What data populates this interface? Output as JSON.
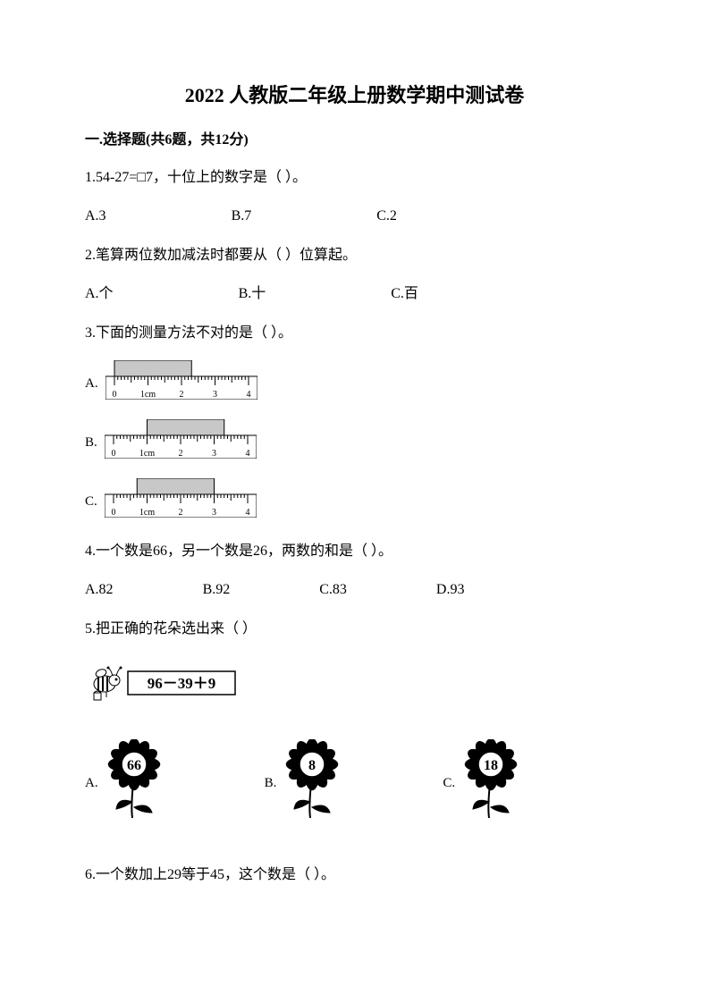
{
  "title": "2022 人教版二年级上册数学期中测试卷",
  "section1": {
    "header": "一.选择题(共6题，共12分)",
    "q1": {
      "text": "1.54-27=□7，十位上的数字是（    ）。",
      "options": {
        "a": "A.3",
        "b": "B.7",
        "c": "C.2"
      }
    },
    "q2": {
      "text": "2.笔算两位数加减法时都要从（      ）位算起。",
      "options": {
        "a": "A.个",
        "b": "B.十",
        "c": "C.百"
      }
    },
    "q3": {
      "text": "3.下面的测量方法不对的是（     ）。",
      "rulers": {
        "a_label": "A.",
        "b_label": "B.",
        "c_label": "C.",
        "ticks": [
          "0",
          "1cm",
          "2",
          "3",
          "4"
        ],
        "a_rect_start": 0,
        "a_rect_end": 2.3,
        "b_rect_start": 1,
        "b_rect_end": 3.3,
        "c_rect_start": 0.7,
        "c_rect_end": 3,
        "ruler_width": 170,
        "ruler_height": 44,
        "rect_height": 18,
        "rect_fill": "#c8c8c8",
        "ruler_fill": "#ffffff",
        "stroke": "#000000",
        "tick_fontsize": 10
      }
    },
    "q4": {
      "text": "4.一个数是66，另一个数是26，两数的和是（     ）。",
      "options": {
        "a": "A.82",
        "b": "B.92",
        "c": "C.83",
        "d": "D.93"
      }
    },
    "q5": {
      "text": "5.把正确的花朵选出来（     ）",
      "bee_expression": "96－39＋9",
      "flowers": {
        "a_label": "A.",
        "b_label": "B.",
        "c_label": "C.",
        "a_value": "66",
        "b_value": "8",
        "c_value": "18",
        "flower_size": 72,
        "center_fill": "#ffffff",
        "petal_fill": "#000000",
        "value_fontsize": 16
      }
    },
    "q6": {
      "text": "6.一个数加上29等于45，这个数是（    ）。"
    }
  }
}
